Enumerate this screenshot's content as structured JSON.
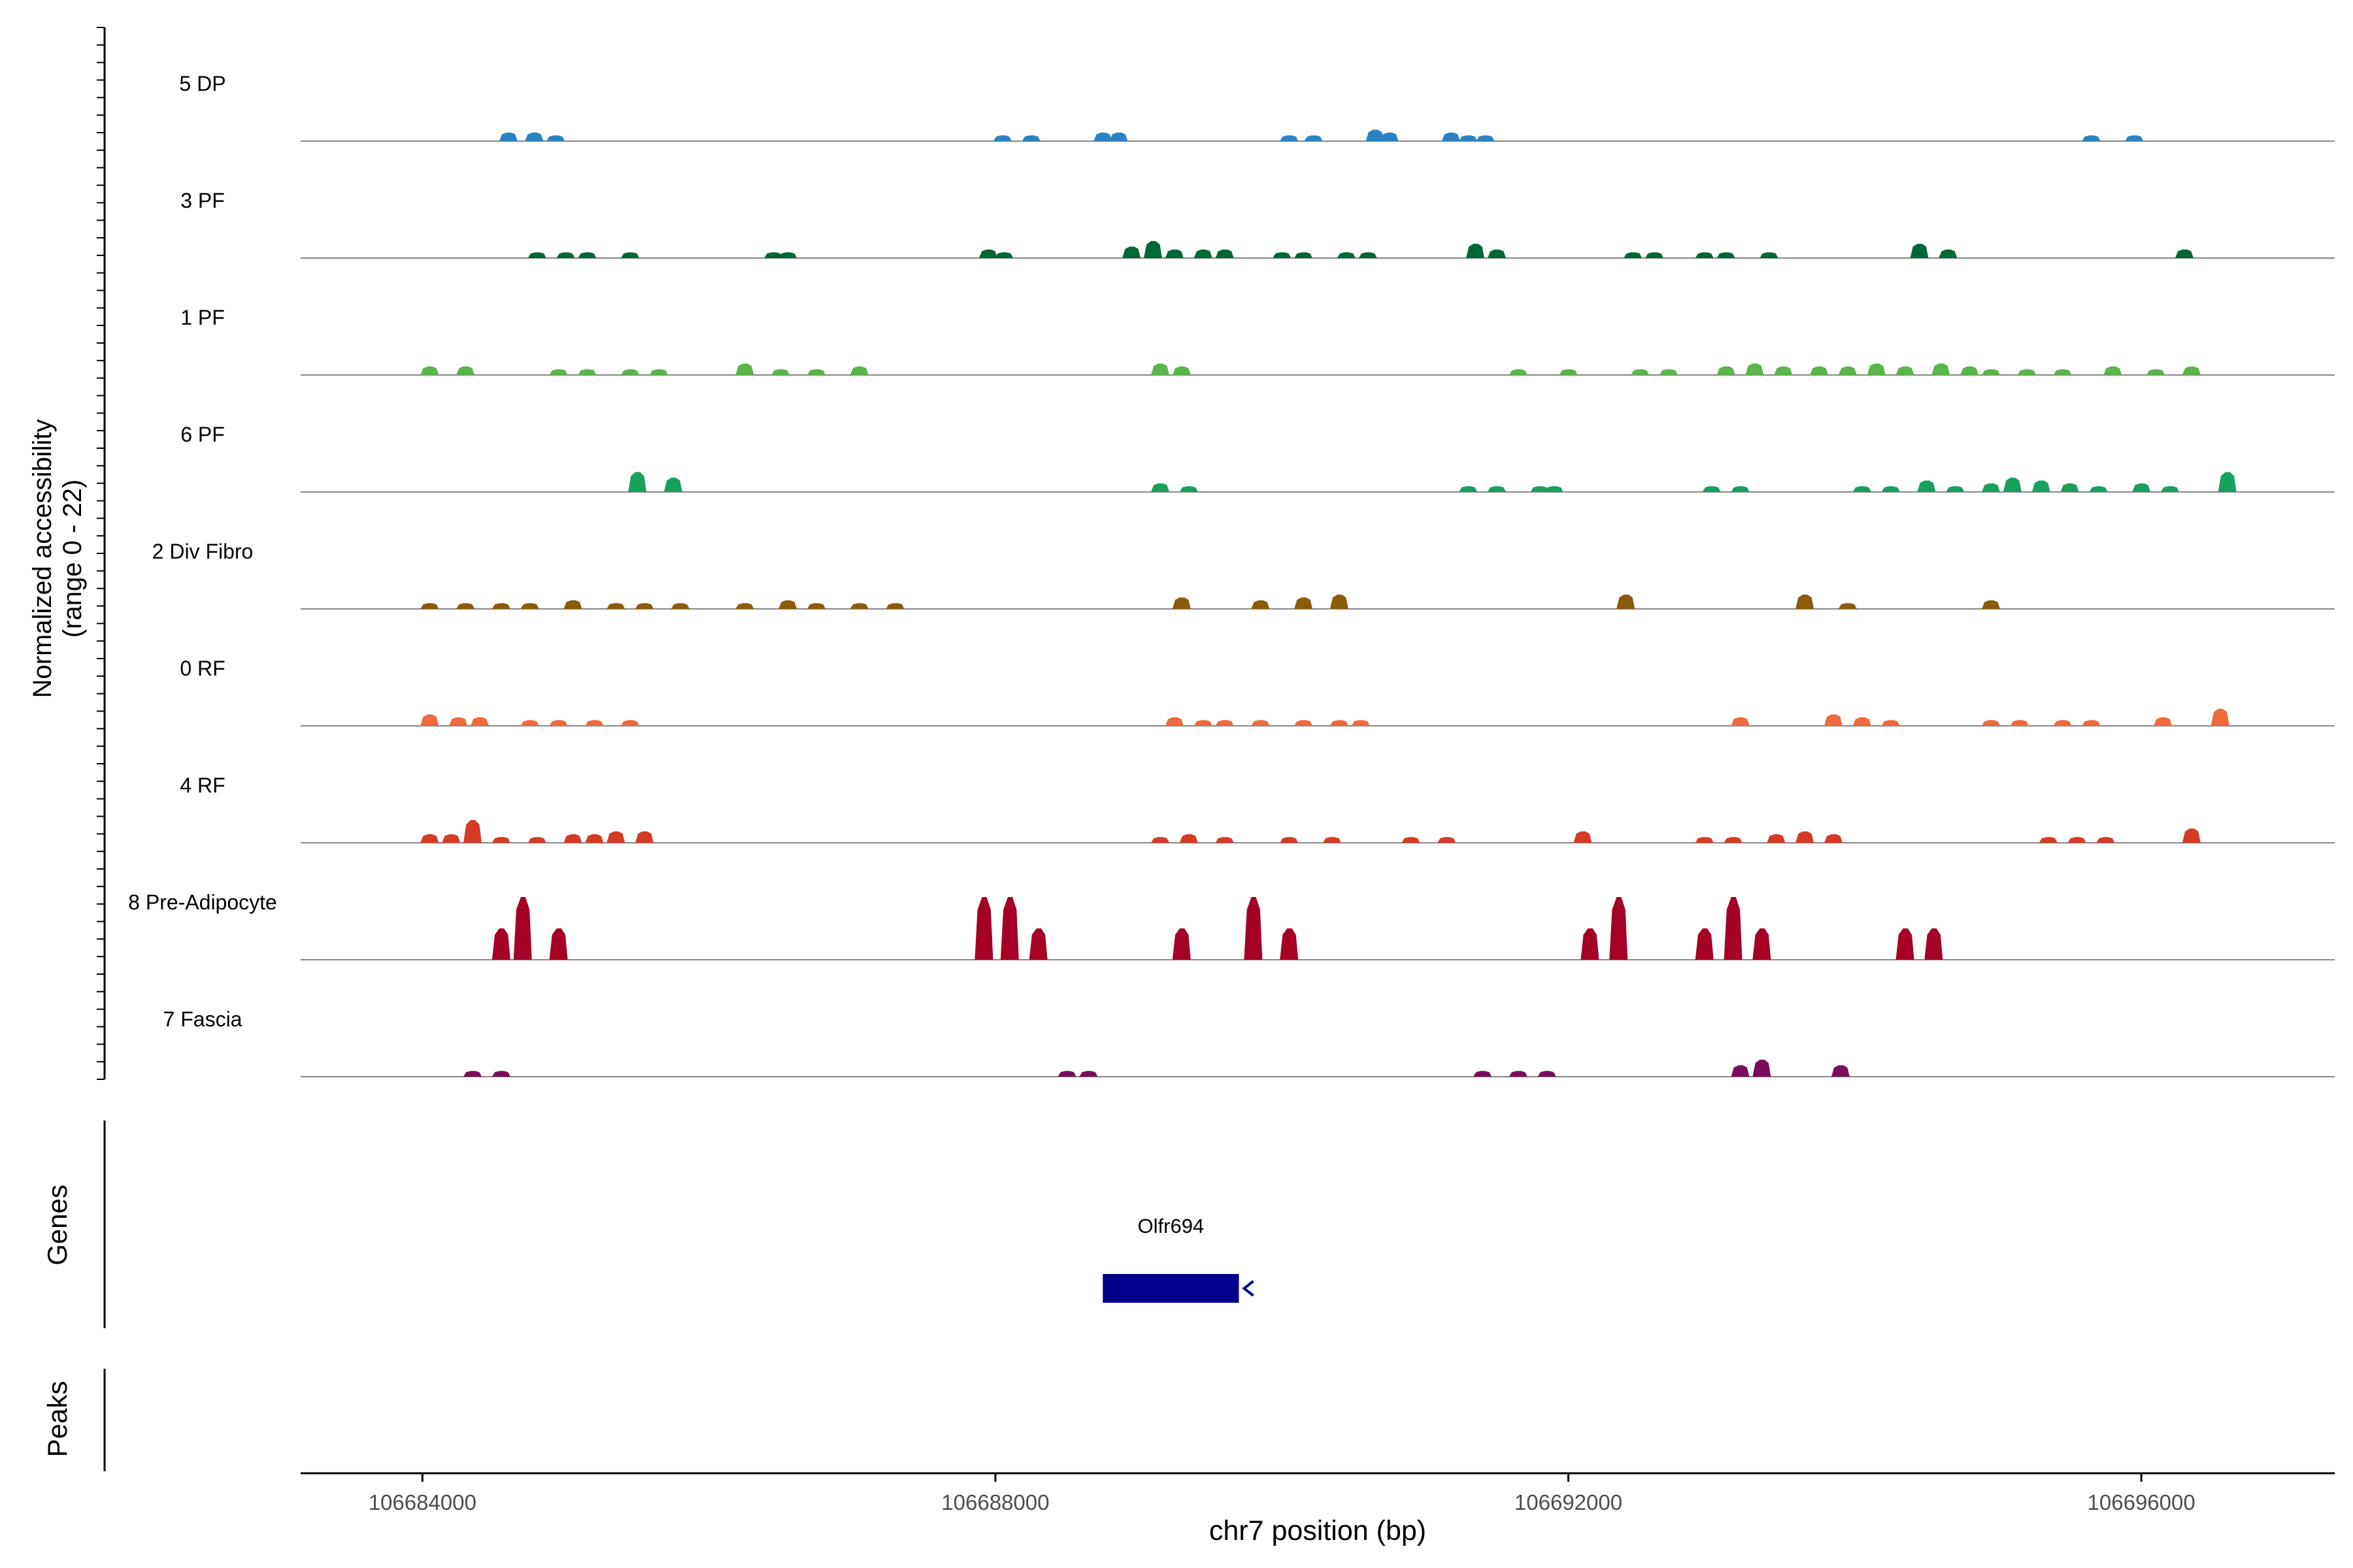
{
  "chart_data": {
    "type": "area",
    "ylabel_line1": "Normalized accessibility",
    "ylabel_line2": "(range 0 - 22)",
    "ylim": [
      0,
      22
    ],
    "xlabel": "chr7 position (bp)",
    "xlim": [
      106683150,
      106697350
    ],
    "x_ticks": [
      {
        "value": 106684000,
        "label": "106684000"
      },
      {
        "value": 106688000,
        "label": "106688000"
      },
      {
        "value": 106692000,
        "label": "106692000"
      },
      {
        "value": 106696000,
        "label": "106696000"
      }
    ],
    "series": [
      {
        "name": "5 DP",
        "color": "#2b83c3",
        "peaks": [
          [
            106684600,
            3
          ],
          [
            106684780,
            3
          ],
          [
            106684930,
            2
          ],
          [
            106688050,
            2
          ],
          [
            106688250,
            2
          ],
          [
            106688750,
            3
          ],
          [
            106688860,
            3
          ],
          [
            106690050,
            2
          ],
          [
            106690220,
            2
          ],
          [
            106690650,
            4
          ],
          [
            106690750,
            3
          ],
          [
            106691180,
            3
          ],
          [
            106691300,
            2
          ],
          [
            106691420,
            2
          ],
          [
            106695650,
            2
          ],
          [
            106695950,
            2
          ]
        ]
      },
      {
        "name": "3 PF",
        "color": "#006837",
        "peaks": [
          [
            106684800,
            2
          ],
          [
            106685000,
            2
          ],
          [
            106685150,
            2
          ],
          [
            106685450,
            2
          ],
          [
            106686450,
            2
          ],
          [
            106686550,
            2
          ],
          [
            106687950,
            3
          ],
          [
            106688060,
            2
          ],
          [
            106688950,
            4
          ],
          [
            106689100,
            6
          ],
          [
            106689250,
            3
          ],
          [
            106689450,
            3
          ],
          [
            106689600,
            3
          ],
          [
            106690000,
            2
          ],
          [
            106690150,
            2
          ],
          [
            106690450,
            2
          ],
          [
            106690600,
            2
          ],
          [
            106691350,
            5
          ],
          [
            106691500,
            3
          ],
          [
            106692450,
            2
          ],
          [
            106692600,
            2
          ],
          [
            106692950,
            2
          ],
          [
            106693100,
            2
          ],
          [
            106693400,
            2
          ],
          [
            106694450,
            5
          ],
          [
            106694650,
            3
          ],
          [
            106696300,
            3
          ]
        ]
      },
      {
        "name": "1 PF",
        "color": "#5ab54a",
        "peaks": [
          [
            106684050,
            3
          ],
          [
            106684300,
            3
          ],
          [
            106684950,
            2
          ],
          [
            106685150,
            2
          ],
          [
            106685450,
            2
          ],
          [
            106685650,
            2
          ],
          [
            106686250,
            4
          ],
          [
            106686500,
            2
          ],
          [
            106686750,
            2
          ],
          [
            106687050,
            3
          ],
          [
            106689150,
            4
          ],
          [
            106689300,
            3
          ],
          [
            106691650,
            2
          ],
          [
            106692000,
            2
          ],
          [
            106692500,
            2
          ],
          [
            106692700,
            2
          ],
          [
            106693100,
            3
          ],
          [
            106693300,
            4
          ],
          [
            106693500,
            3
          ],
          [
            106693750,
            3
          ],
          [
            106693950,
            3
          ],
          [
            106694150,
            4
          ],
          [
            106694350,
            3
          ],
          [
            106694600,
            4
          ],
          [
            106694800,
            3
          ],
          [
            106694950,
            2
          ],
          [
            106695200,
            2
          ],
          [
            106695450,
            2
          ],
          [
            106695800,
            3
          ],
          [
            106696100,
            2
          ],
          [
            106696350,
            3
          ]
        ]
      },
      {
        "name": "6 PF",
        "color": "#17a05e",
        "peaks": [
          [
            106685500,
            7
          ],
          [
            106685750,
            5
          ],
          [
            106689150,
            3
          ],
          [
            106689350,
            2
          ],
          [
            106691300,
            2
          ],
          [
            106691500,
            2
          ],
          [
            106691800,
            2
          ],
          [
            106691900,
            2
          ],
          [
            106693000,
            2
          ],
          [
            106693200,
            2
          ],
          [
            106694050,
            2
          ],
          [
            106694250,
            2
          ],
          [
            106694500,
            4
          ],
          [
            106694700,
            2
          ],
          [
            106694950,
            3
          ],
          [
            106695100,
            5
          ],
          [
            106695300,
            4
          ],
          [
            106695500,
            3
          ],
          [
            106695700,
            2
          ],
          [
            106696000,
            3
          ],
          [
            106696200,
            2
          ],
          [
            106696600,
            7
          ]
        ]
      },
      {
        "name": "2 Div Fibro",
        "color": "#8b5a0a",
        "peaks": [
          [
            106684050,
            2
          ],
          [
            106684300,
            2
          ],
          [
            106684550,
            2
          ],
          [
            106684750,
            2
          ],
          [
            106685050,
            3
          ],
          [
            106685350,
            2
          ],
          [
            106685550,
            2
          ],
          [
            106685800,
            2
          ],
          [
            106686250,
            2
          ],
          [
            106686550,
            3
          ],
          [
            106686750,
            2
          ],
          [
            106687050,
            2
          ],
          [
            106687300,
            2
          ],
          [
            106689300,
            4
          ],
          [
            106689850,
            3
          ],
          [
            106690150,
            4
          ],
          [
            106690400,
            5
          ],
          [
            106692400,
            5
          ],
          [
            106693650,
            5
          ],
          [
            106693950,
            2
          ],
          [
            106694950,
            3
          ]
        ]
      },
      {
        "name": "0 RF",
        "color": "#ef6a3c",
        "peaks": [
          [
            106684050,
            4
          ],
          [
            106684250,
            3
          ],
          [
            106684400,
            3
          ],
          [
            106684750,
            2
          ],
          [
            106684950,
            2
          ],
          [
            106685200,
            2
          ],
          [
            106685450,
            2
          ],
          [
            106689250,
            3
          ],
          [
            106689450,
            2
          ],
          [
            106689600,
            2
          ],
          [
            106689850,
            2
          ],
          [
            106690150,
            2
          ],
          [
            106690400,
            2
          ],
          [
            106690550,
            2
          ],
          [
            106693200,
            3
          ],
          [
            106693850,
            4
          ],
          [
            106694050,
            3
          ],
          [
            106694250,
            2
          ],
          [
            106694950,
            2
          ],
          [
            106695150,
            2
          ],
          [
            106695450,
            2
          ],
          [
            106695650,
            2
          ],
          [
            106696150,
            3
          ],
          [
            106696550,
            6
          ]
        ]
      },
      {
        "name": "4 RF",
        "color": "#d63b26",
        "peaks": [
          [
            106684050,
            3
          ],
          [
            106684200,
            3
          ],
          [
            106684350,
            8
          ],
          [
            106684550,
            2
          ],
          [
            106684800,
            2
          ],
          [
            106685050,
            3
          ],
          [
            106685200,
            3
          ],
          [
            106685350,
            4
          ],
          [
            106685550,
            4
          ],
          [
            106689150,
            2
          ],
          [
            106689350,
            3
          ],
          [
            106689600,
            2
          ],
          [
            106690050,
            2
          ],
          [
            106690350,
            2
          ],
          [
            106690900,
            2
          ],
          [
            106691150,
            2
          ],
          [
            106692100,
            4
          ],
          [
            106692950,
            2
          ],
          [
            106693150,
            2
          ],
          [
            106693450,
            3
          ],
          [
            106693650,
            4
          ],
          [
            106693850,
            3
          ],
          [
            106695350,
            2
          ],
          [
            106695550,
            2
          ],
          [
            106695750,
            2
          ],
          [
            106696350,
            5
          ]
        ]
      },
      {
        "name": "8 Pre-Adipocyte",
        "color": "#a50026",
        "peaks": [
          [
            106684550,
            11
          ],
          [
            106684700,
            22
          ],
          [
            106684950,
            11
          ],
          [
            106687920,
            22
          ],
          [
            106688100,
            22
          ],
          [
            106688300,
            11
          ],
          [
            106689300,
            11
          ],
          [
            106689800,
            22
          ],
          [
            106690050,
            11
          ],
          [
            106692150,
            11
          ],
          [
            106692350,
            22
          ],
          [
            106692950,
            11
          ],
          [
            106693150,
            22
          ],
          [
            106693350,
            11
          ],
          [
            106694350,
            11
          ],
          [
            106694550,
            11
          ]
        ]
      },
      {
        "name": "7 Fascia",
        "color": "#7a0e5a",
        "peaks": [
          [
            106684350,
            2
          ],
          [
            106684550,
            2
          ],
          [
            106688500,
            2
          ],
          [
            106688650,
            2
          ],
          [
            106691400,
            2
          ],
          [
            106691650,
            2
          ],
          [
            106691850,
            2
          ],
          [
            106693200,
            4
          ],
          [
            106693350,
            6
          ],
          [
            106693900,
            4
          ]
        ]
      }
    ],
    "genes_label": "Genes",
    "gene": {
      "name": "Olfr694",
      "start": 106688750,
      "end": 106689700,
      "strand": "-",
      "color": "#00008b"
    },
    "peaks_label": "Peaks"
  }
}
